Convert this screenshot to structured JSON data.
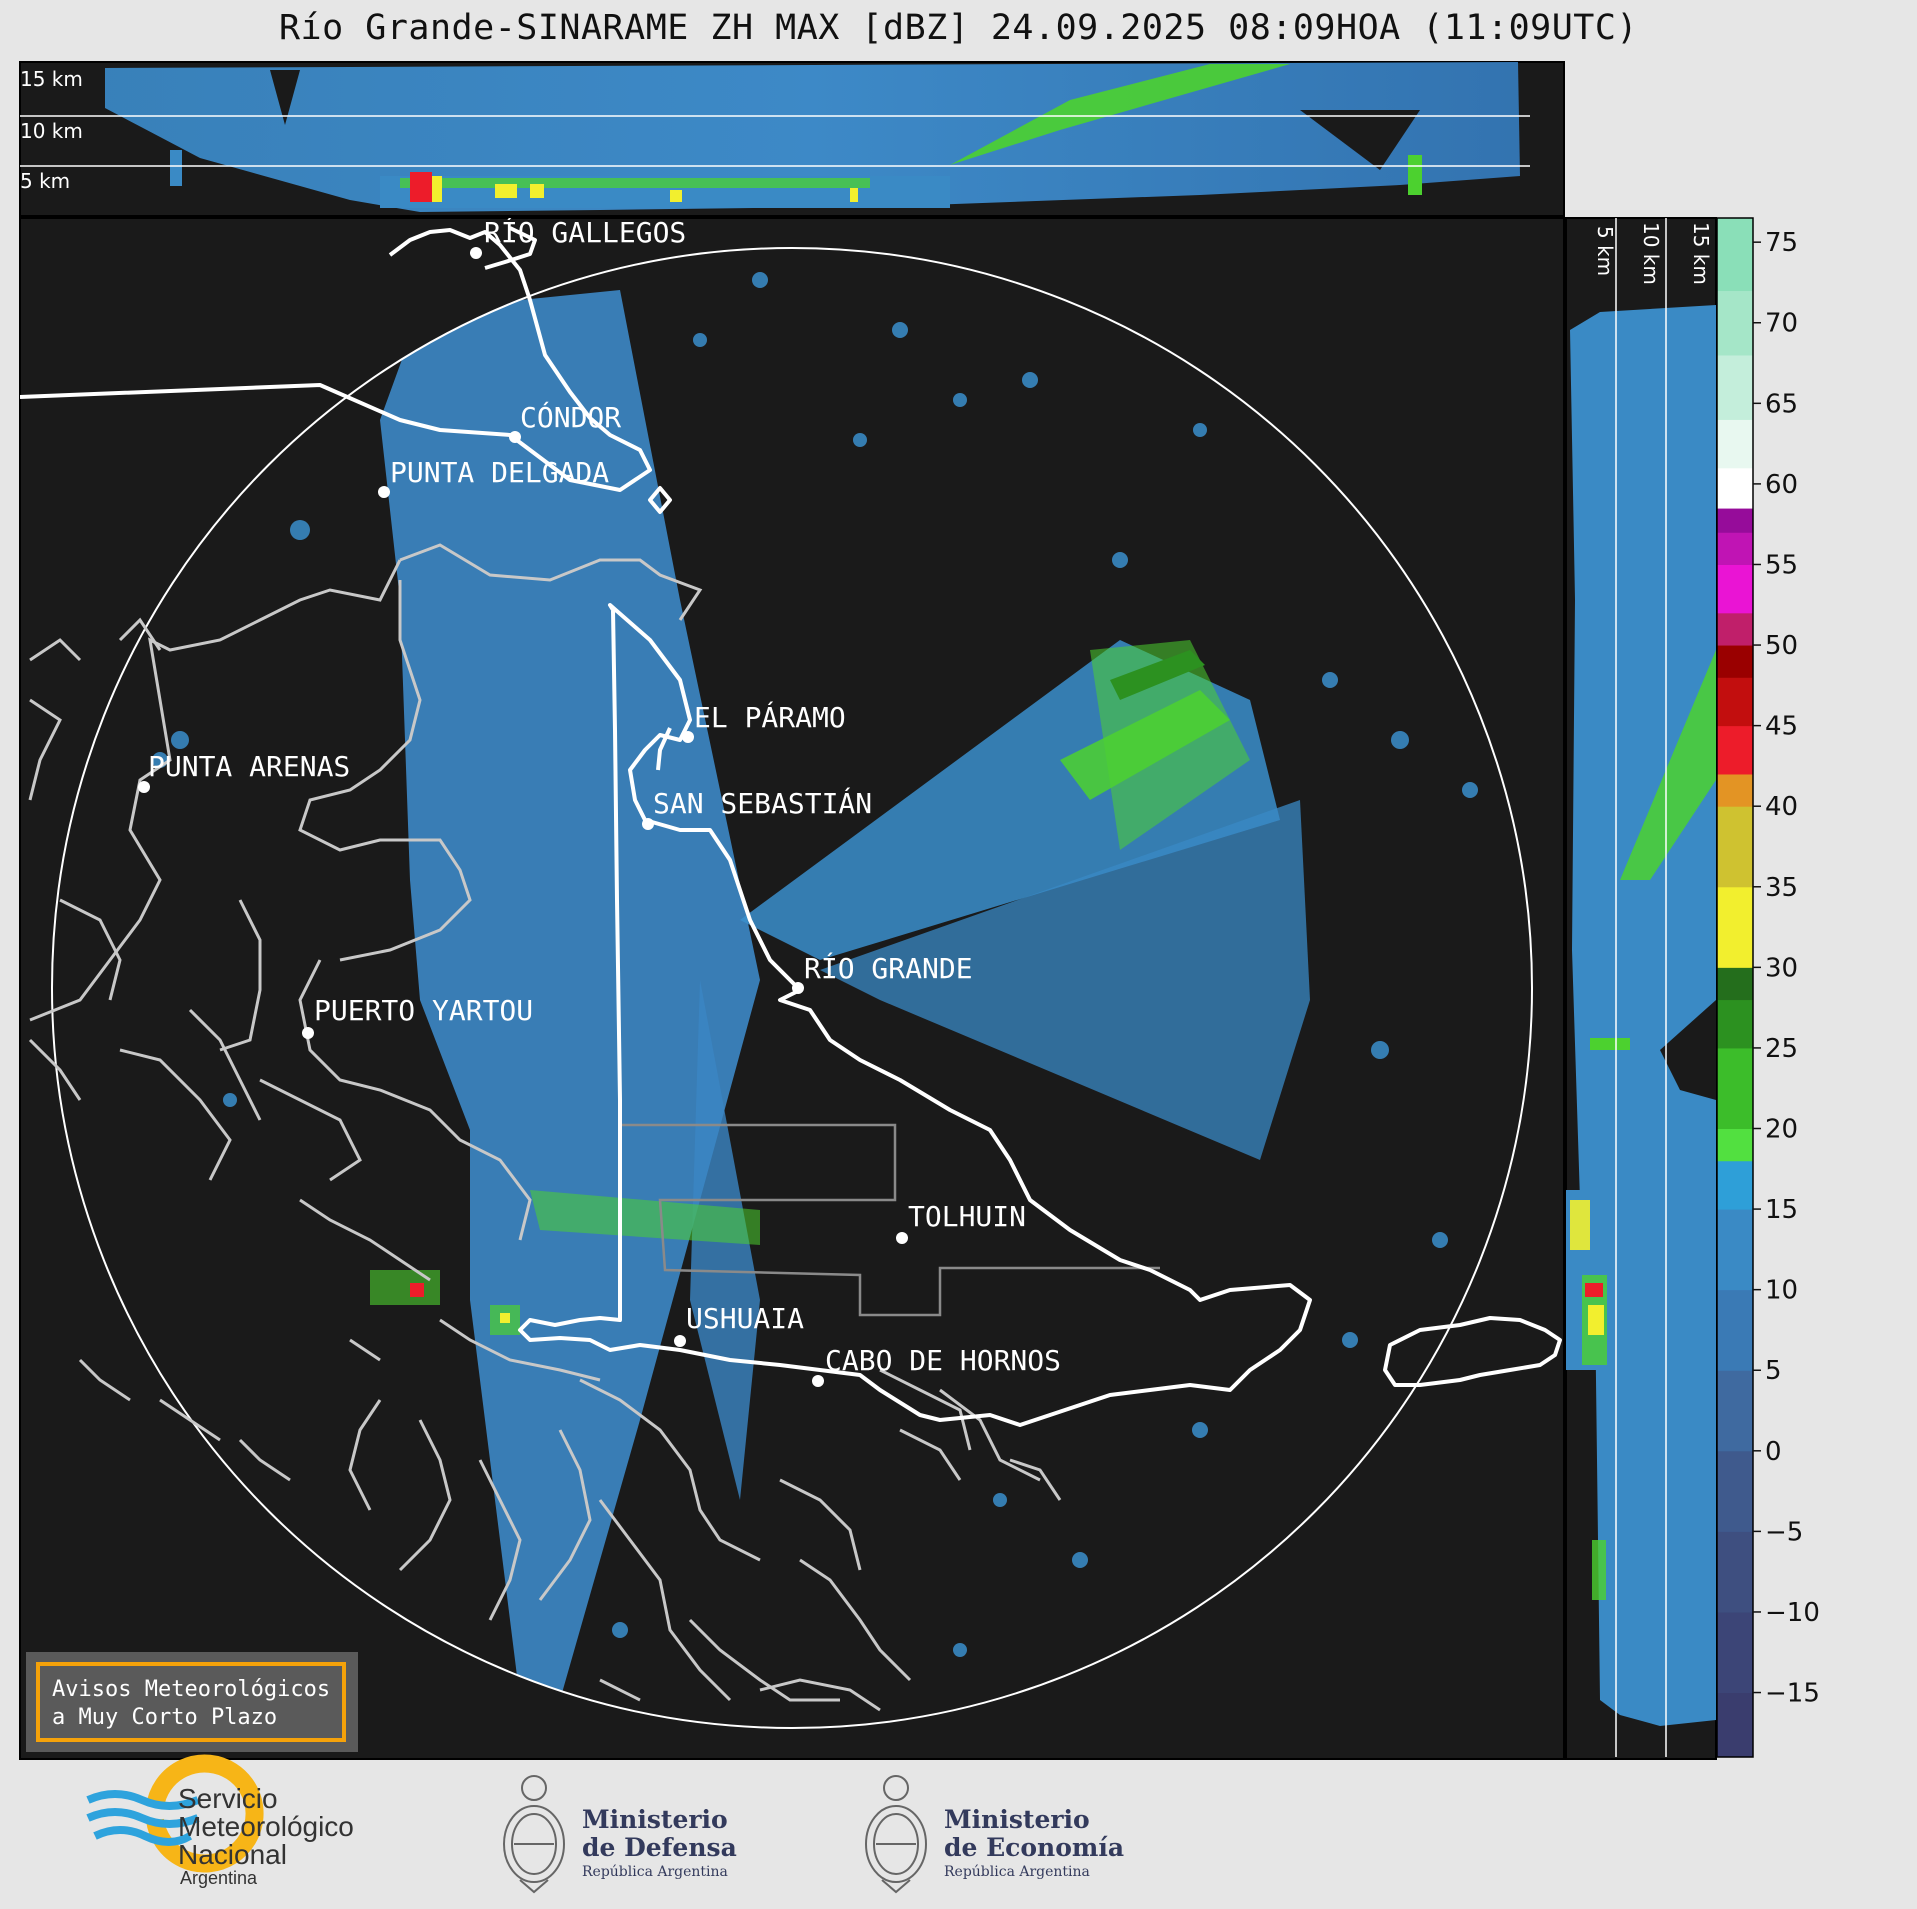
{
  "title": "Río Grande-SINARAME ZH MAX [dBZ] 24.09.2025 08:09HOA (11:09UTC)",
  "colors": {
    "background": "#e6e6e6",
    "map_bg": "#1a1a1a",
    "echo_main": "#3b8fcc",
    "echo_light": "#55a8e0",
    "echo_green": "#4cd12f",
    "warning_border": "#f5a20a",
    "warning_bg": "#5a5a5a"
  },
  "top_section": {
    "height_labels": [
      "15 km",
      "10 km",
      "5 km"
    ]
  },
  "side_section": {
    "height_labels": [
      "5 km",
      "10 km",
      "15 km"
    ]
  },
  "colorbar": {
    "ticks": [
      "75",
      "70",
      "65",
      "60",
      "55",
      "50",
      "45",
      "40",
      "35",
      "30",
      "25",
      "20",
      "15",
      "10",
      "5",
      "0",
      "−5",
      "−10",
      "−15"
    ],
    "range": [
      -19,
      76.5
    ],
    "stops": [
      {
        "v": -19,
        "c": "#3a3d6e"
      },
      {
        "v": -15,
        "c": "#3c4577"
      },
      {
        "v": -10,
        "c": "#3e4f80"
      },
      {
        "v": -5,
        "c": "#3f5a8d"
      },
      {
        "v": 0,
        "c": "#3f6aa0"
      },
      {
        "v": 5,
        "c": "#3a7ab5"
      },
      {
        "v": 10,
        "c": "#3a8ac5"
      },
      {
        "v": 15,
        "c": "#2e9fd8"
      },
      {
        "v": 18,
        "c": "#52e040"
      },
      {
        "v": 20,
        "c": "#3cbd2a"
      },
      {
        "v": 25,
        "c": "#2c9120"
      },
      {
        "v": 28,
        "c": "#246e1c"
      },
      {
        "v": 30,
        "c": "#f2ef2e"
      },
      {
        "v": 35,
        "c": "#cfc230"
      },
      {
        "v": 40,
        "c": "#e39424"
      },
      {
        "v": 42,
        "c": "#ed1c2a"
      },
      {
        "v": 45,
        "c": "#c20e0e"
      },
      {
        "v": 48,
        "c": "#9a0000"
      },
      {
        "v": 50,
        "c": "#c01f6a"
      },
      {
        "v": 52,
        "c": "#ea14d4"
      },
      {
        "v": 55,
        "c": "#c014b4"
      },
      {
        "v": 57,
        "c": "#960c9a"
      },
      {
        "v": 58.5,
        "c": "#ffffff"
      },
      {
        "v": 61,
        "c": "#e8f8f0"
      },
      {
        "v": 64,
        "c": "#c4eedb"
      },
      {
        "v": 68,
        "c": "#a5e6c8"
      },
      {
        "v": 72,
        "c": "#8adfb8"
      },
      {
        "v": 76.5,
        "c": "#8adfb8"
      }
    ]
  },
  "cities": [
    {
      "name": "RÍO GALLEGOS",
      "key": "rio-gallegos"
    },
    {
      "name": "CÓNDOR",
      "key": "condor"
    },
    {
      "name": "PUNTA DELGADA",
      "key": "punta-delgada"
    },
    {
      "name": "EL PÁRAMO",
      "key": "el-paramo"
    },
    {
      "name": "SAN SEBASTIÁN",
      "key": "san-sebastian"
    },
    {
      "name": "PUNTA ARENAS",
      "key": "punta-arenas"
    },
    {
      "name": "RÍO GRANDE",
      "key": "rio-grande"
    },
    {
      "name": "PUERTO YARTOU",
      "key": "puerto-yartou"
    },
    {
      "name": "TOLHUIN",
      "key": "tolhuin"
    },
    {
      "name": "USHUAIA",
      "key": "ushuaia"
    },
    {
      "name": "CABO DE HORNOS",
      "key": "cabo-de-hornos"
    }
  ],
  "warning_box": {
    "line1": "Avisos Meteorológicos",
    "line2": "a Muy Corto Plazo"
  },
  "logos": {
    "smn": {
      "line1": "Servicio",
      "line2": "Meteorológico",
      "line3": "Nacional",
      "line4": "Argentina"
    },
    "defensa": {
      "line1": "Ministerio",
      "line2": "de Defensa",
      "line3": "República Argentina"
    },
    "economia": {
      "line1": "Ministerio",
      "line2": "de Economía",
      "line3": "República Argentina"
    }
  }
}
